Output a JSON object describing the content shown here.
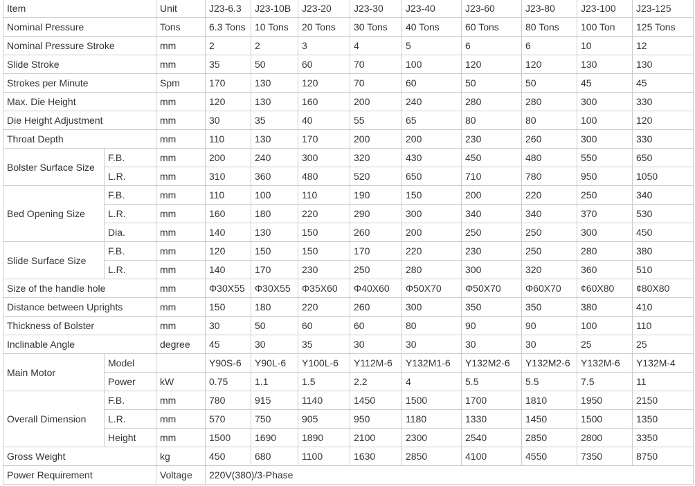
{
  "header": {
    "item": "Item",
    "unit": "Unit",
    "models": [
      "J23-6.3",
      "J23-10B",
      "J23-20",
      "J23-30",
      "J23-40",
      "J23-60",
      "J23-80",
      "J23-100",
      "J23-125"
    ]
  },
  "rows": [
    {
      "item": "Nominal Pressure",
      "unit": "Tons",
      "values": [
        "6.3 Tons",
        "10 Tons",
        "20 Tons",
        "30 Tons",
        "40 Tons",
        "60 Tons",
        "80 Tons",
        "100 Ton",
        "125 Tons"
      ]
    },
    {
      "item": "Nominal Pressure Stroke",
      "unit": "mm",
      "values": [
        "2",
        "2",
        "3",
        "4",
        "5",
        "6",
        "6",
        "10",
        "12"
      ]
    },
    {
      "item": "Slide Stroke",
      "unit": "mm",
      "values": [
        "35",
        "50",
        "60",
        "70",
        "100",
        "120",
        "120",
        "130",
        "130"
      ]
    },
    {
      "item": "Strokes per Minute",
      "unit": "Spm",
      "values": [
        "170",
        "130",
        "120",
        "70",
        "60",
        "50",
        "50",
        "45",
        "45"
      ]
    },
    {
      "item": "Max. Die Height",
      "unit": "mm",
      "values": [
        "120",
        "130",
        "160",
        "200",
        "240",
        "280",
        "280",
        "300",
        "330"
      ]
    },
    {
      "item": "Die Height Adjustment",
      "unit": "mm",
      "values": [
        "30",
        "35",
        "40",
        "55",
        "65",
        "80",
        "80",
        "100",
        "120"
      ]
    },
    {
      "item": "Throat Depth",
      "unit": "mm",
      "values": [
        "110",
        "130",
        "170",
        "200",
        "200",
        "230",
        "260",
        "300",
        "330"
      ]
    },
    {
      "item": "Bolster Surface Size",
      "subrows": [
        {
          "sub": "F.B.",
          "unit": "mm",
          "values": [
            "200",
            "240",
            "300",
            "320",
            "430",
            "450",
            "480",
            "550",
            "650"
          ]
        },
        {
          "sub": "L.R.",
          "unit": "mm",
          "values": [
            "310",
            "360",
            "480",
            "520",
            "650",
            "710",
            "780",
            "950",
            "1050"
          ]
        }
      ]
    },
    {
      "item": "Bed Opening Size",
      "subrows": [
        {
          "sub": "F.B.",
          "unit": "mm",
          "values": [
            "110",
            "100",
            "110",
            "190",
            "150",
            "200",
            "220",
            "250",
            "340"
          ]
        },
        {
          "sub": "L.R.",
          "unit": "mm",
          "values": [
            "160",
            "180",
            "220",
            "290",
            "300",
            "340",
            "340",
            "370",
            "530"
          ]
        },
        {
          "sub": "Dia.",
          "unit": "mm",
          "values": [
            "140",
            "130",
            "150",
            "260",
            "200",
            "250",
            "250",
            "300",
            "450"
          ]
        }
      ]
    },
    {
      "item": "Slide Surface Size",
      "subrows": [
        {
          "sub": "F.B.",
          "unit": "mm",
          "values": [
            "120",
            "150",
            "150",
            "170",
            "220",
            "230",
            "250",
            "280",
            "380"
          ]
        },
        {
          "sub": "L.R.",
          "unit": "mm",
          "values": [
            "140",
            "170",
            "230",
            "250",
            "280",
            "300",
            "320",
            "360",
            "510"
          ]
        }
      ]
    },
    {
      "item": "Size of the handle hole",
      "unit": "mm",
      "values": [
        "Φ30X55",
        "Φ30X55",
        "Φ35X60",
        "Φ40X60",
        "Φ50X70",
        "Φ50X70",
        "Φ60X70",
        "¢60X80",
        "¢80X80"
      ]
    },
    {
      "item": "Distance between Uprights",
      "unit": "mm",
      "values": [
        "150",
        "180",
        "220",
        "260",
        "300",
        "350",
        "350",
        "380",
        "410"
      ]
    },
    {
      "item": "Thickness of Bolster",
      "unit": "mm",
      "values": [
        "30",
        "50",
        "60",
        "60",
        "80",
        "90",
        "90",
        "100",
        "110"
      ]
    },
    {
      "item": "Inclinable Angle",
      "unit": "degree",
      "values": [
        "45",
        "30",
        "35",
        "30",
        "30",
        "30",
        "30",
        "25",
        "25"
      ]
    },
    {
      "item": "Main Motor",
      "subrows": [
        {
          "sub": "Model",
          "unit": "",
          "values": [
            "Y90S-6",
            "Y90L-6",
            "Y100L-6",
            "Y112M-6",
            "Y132M1-6",
            "Y132M2-6",
            "Y132M2-6",
            "Y132M-6",
            "Y132M-4"
          ]
        },
        {
          "sub": "Power",
          "unit": "kW",
          "values": [
            "0.75",
            "1.1",
            "1.5",
            "2.2",
            "4",
            "5.5",
            "5.5",
            "7.5",
            "11"
          ]
        }
      ]
    },
    {
      "item": "Overall Dimension",
      "subrows": [
        {
          "sub": "F.B.",
          "unit": "mm",
          "values": [
            "780",
            "915",
            "1140",
            "1450",
            "1500",
            "1700",
            "1810",
            "1950",
            "2150"
          ]
        },
        {
          "sub": "L.R.",
          "unit": "mm",
          "values": [
            "570",
            "750",
            "905",
            "950",
            "1180",
            "1330",
            "1450",
            "1500",
            "1350"
          ]
        },
        {
          "sub": "Height",
          "unit": "mm",
          "values": [
            "1500",
            "1690",
            "1890",
            "2100",
            "2300",
            "2540",
            "2850",
            "2800",
            "3350"
          ]
        }
      ]
    },
    {
      "item": "Gross Weight",
      "unit": "kg",
      "values": [
        "450",
        "680",
        "1100",
        "1630",
        "2850",
        "4100",
        "4550",
        "7350",
        "8750"
      ]
    },
    {
      "item": "Power Requirement",
      "unit": "Voltage",
      "span_value": "220V(380)/3-Phase"
    }
  ]
}
